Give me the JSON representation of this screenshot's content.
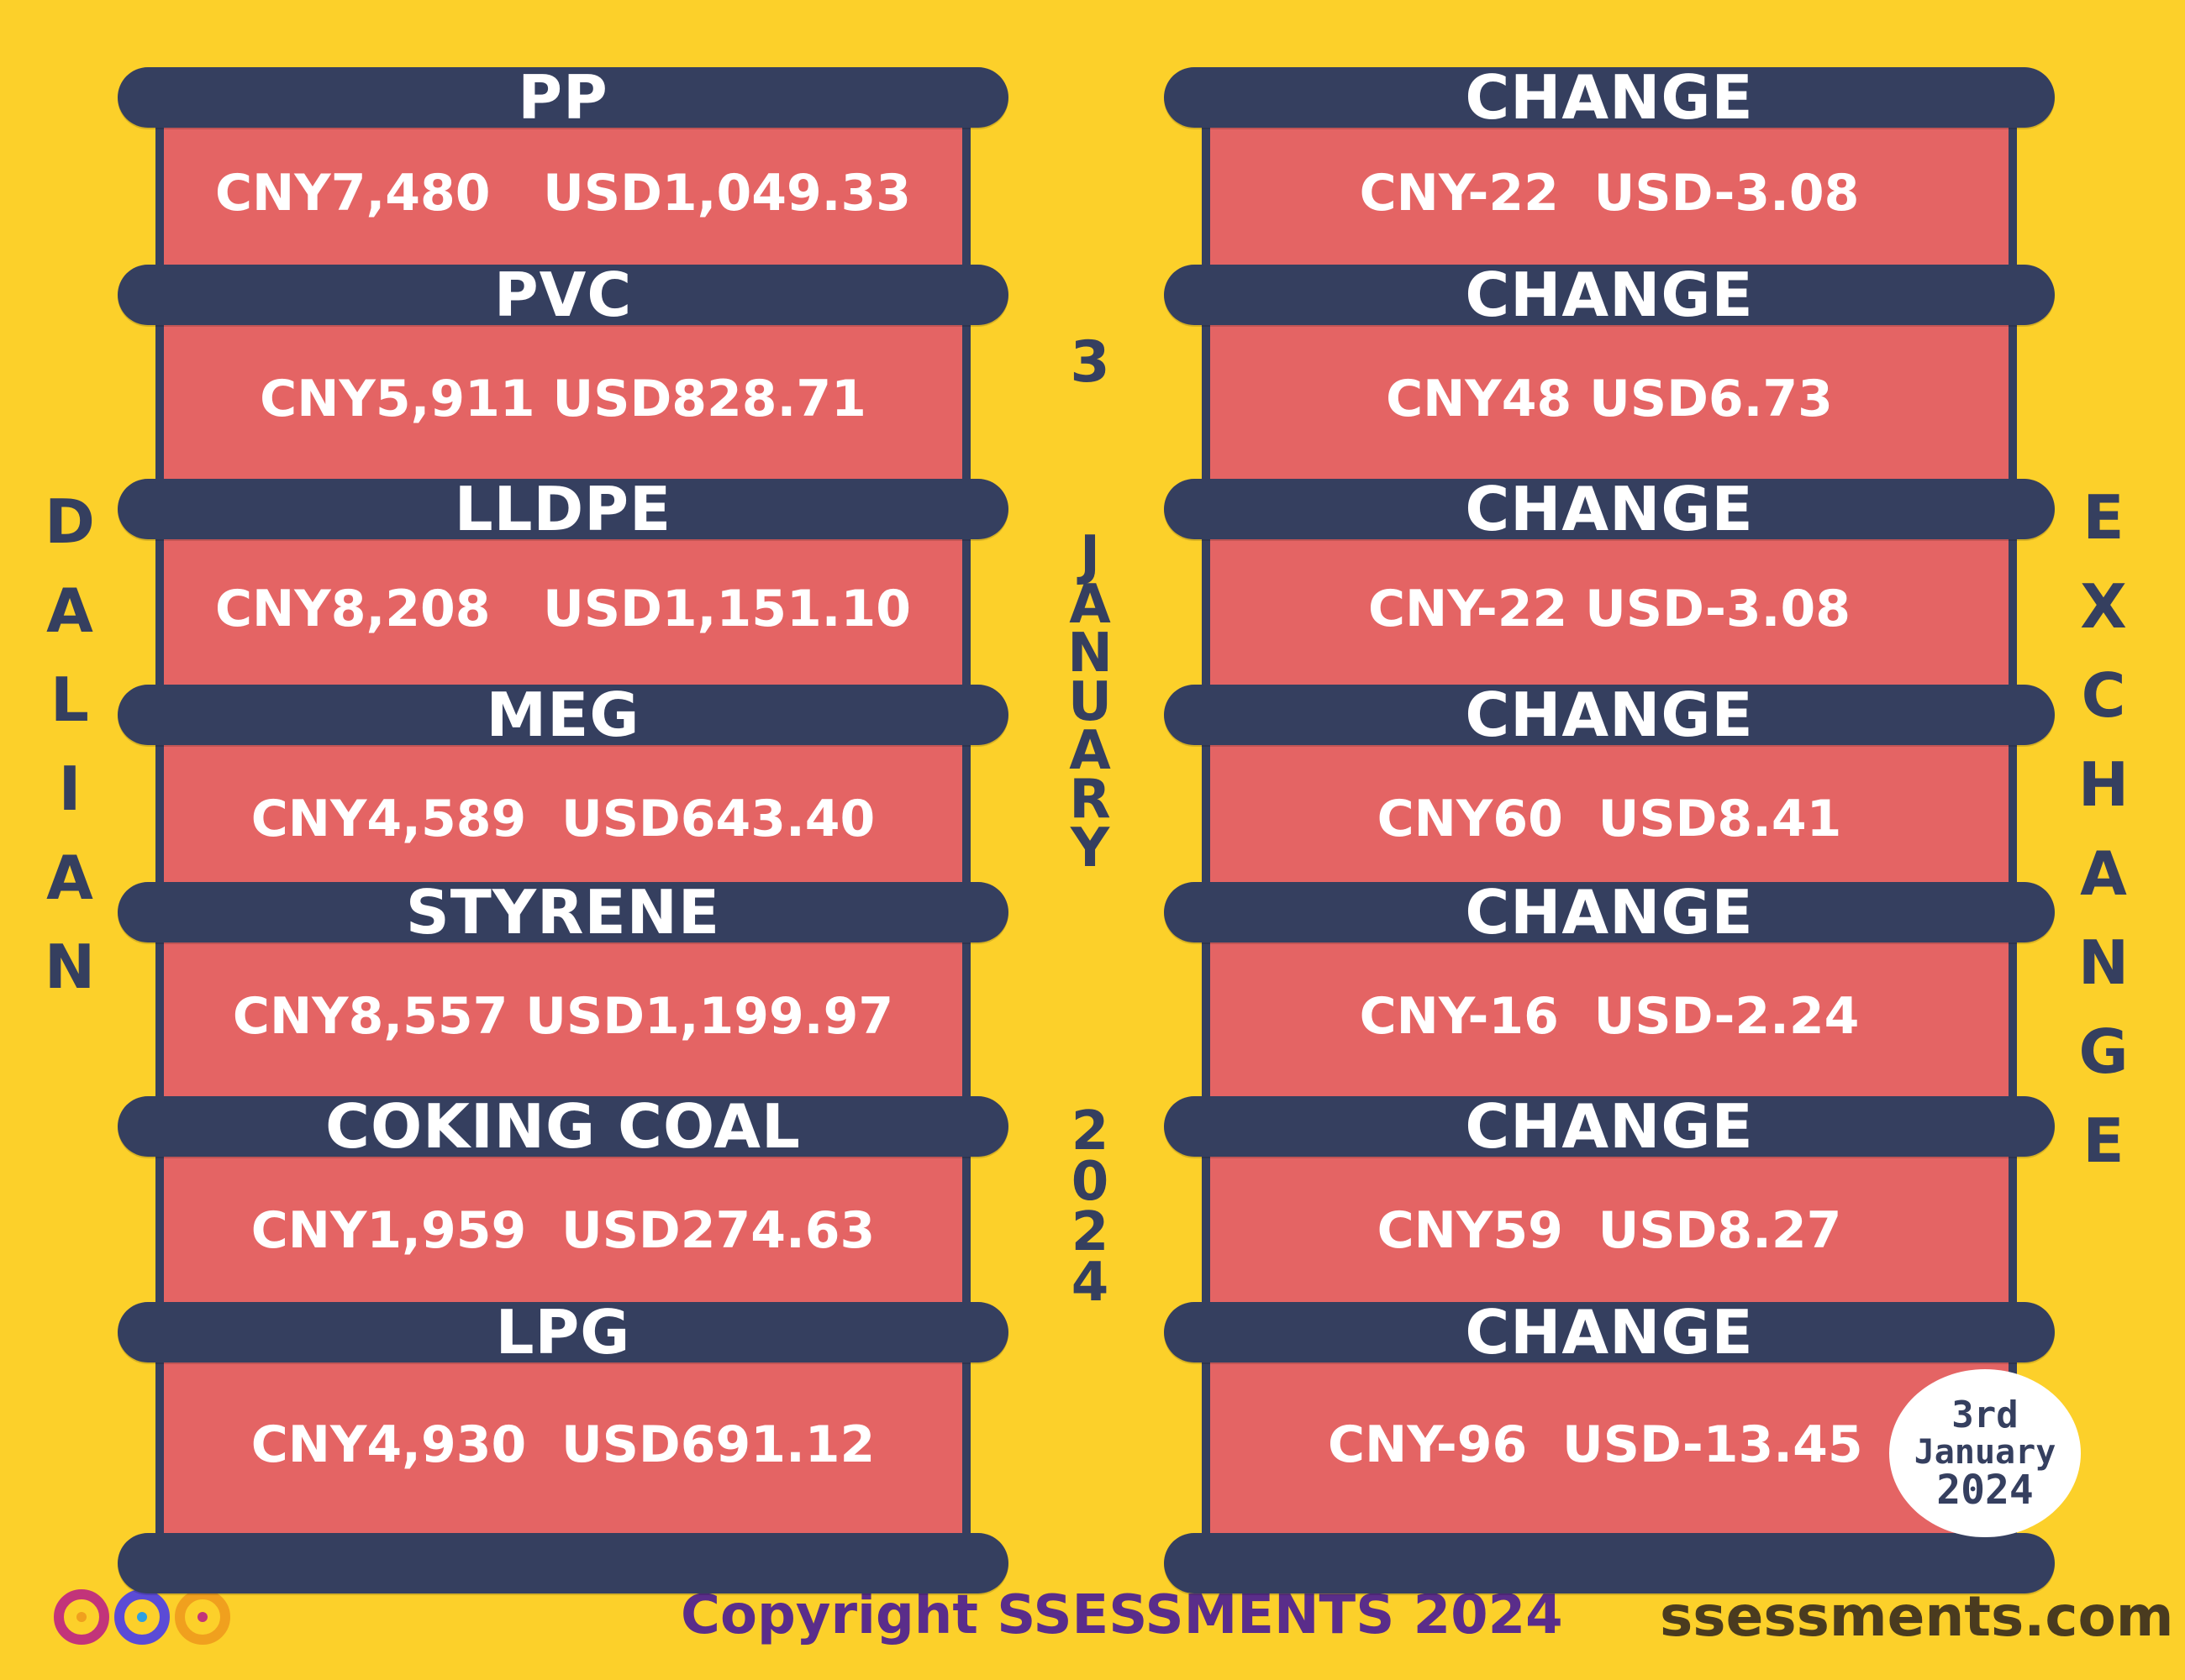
{
  "left_labels": [
    "PP",
    "PVC",
    "LLDPE",
    "MEG",
    "STYRENE",
    "COKING COAL",
    "LPG"
  ],
  "left_values": [
    "CNY7,480   USD1,049.33",
    "CNY5,911 USD828.71",
    "CNY8,208   USD1,151.10",
    "CNY4,589  USD643.40",
    "CNY8,557 USD1,199.97",
    "CNY1,959  USD274.63",
    "CNY4,930  USD691.12"
  ],
  "right_labels": [
    "CHANGE",
    "CHANGE",
    "CHANGE",
    "CHANGE",
    "CHANGE",
    "CHANGE",
    "CHANGE"
  ],
  "right_values": [
    "CNY-22  USD-3.08",
    "CNY48 USD6.73",
    "CNY-22 USD-3.08",
    "CNY60  USD8.41",
    "CNY-16  USD-2.24",
    "CNY59  USD8.27",
    "CNY-96  USD-13.45"
  ],
  "side_left": [
    "D",
    "A",
    "L",
    "I",
    "A",
    "N"
  ],
  "side_right": [
    "E",
    "X",
    "C",
    "H",
    "A",
    "N",
    "G",
    "E"
  ],
  "center": {
    "day": "3",
    "month": [
      "J",
      "A",
      "N",
      "U",
      "A",
      "R",
      "Y"
    ],
    "year": [
      "2",
      "0",
      "2",
      "4"
    ]
  },
  "badge": {
    "line1": "3rd",
    "line2": "January",
    "line3": "2024"
  },
  "footer": {
    "copyright": "Copyright SSESSMENTS 2024",
    "site": "ssessments.com",
    "logo": "infinity-logo-icon"
  },
  "colors": {
    "background": "#fcd02a",
    "bar": "#353f5f",
    "box": "#e46464",
    "copyright": "#5a2d8a"
  }
}
